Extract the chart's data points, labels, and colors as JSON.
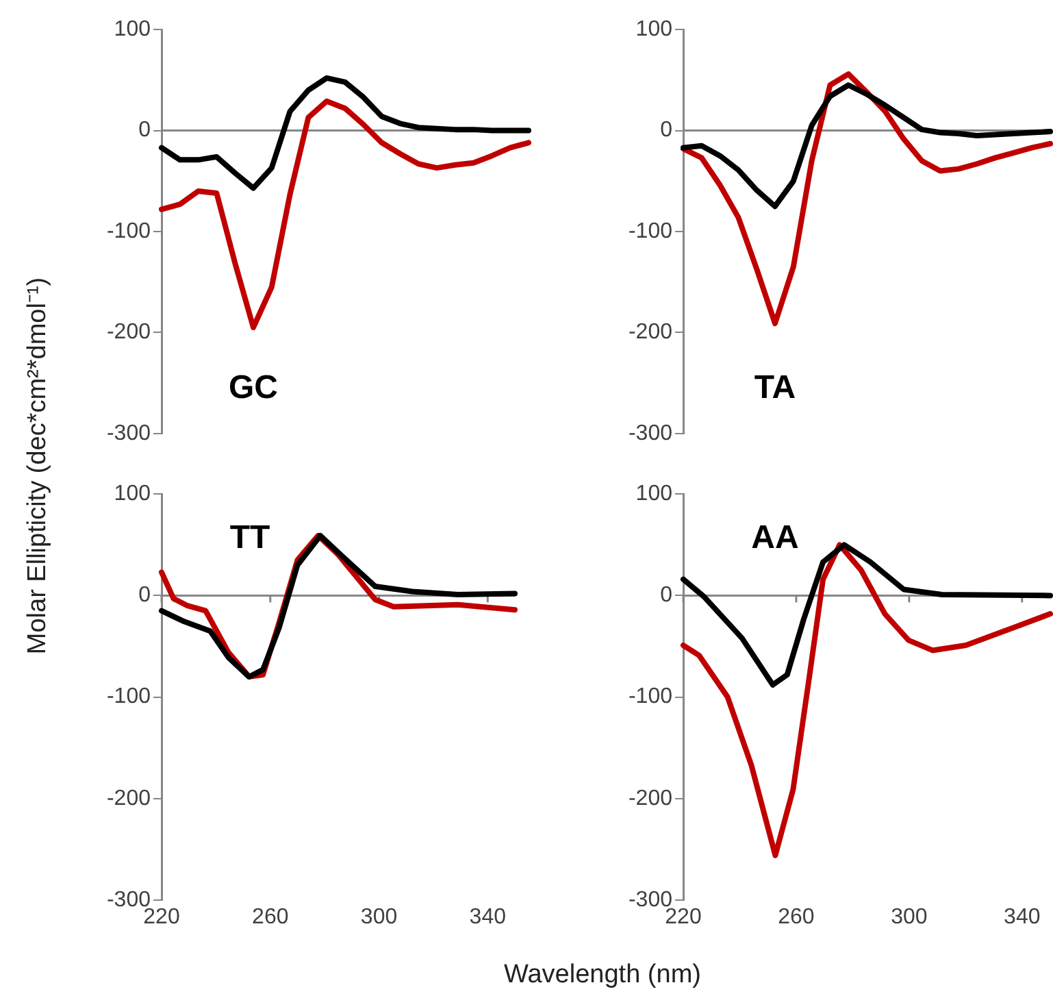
{
  "chart_data": [
    {
      "type": "line",
      "title": "GC",
      "ylabel": "Molar Ellipticity (dec*cm²*dmol⁻¹)",
      "categories": [
        null,
        null,
        null,
        null,
        null,
        null,
        null,
        null,
        null,
        null,
        null,
        null,
        null,
        null,
        null,
        null,
        null,
        null,
        null,
        null,
        null
      ],
      "ylim": [
        -300,
        100
      ],
      "yticks": [
        -300,
        -200,
        -100,
        0,
        100
      ],
      "tick_labels": "y",
      "marker": "none",
      "line_style": "solid",
      "series": [
        {
          "color": "#000000",
          "values": [
            -17,
            -29,
            -29,
            -26,
            -42,
            -57,
            -37,
            19,
            40,
            52,
            48,
            33,
            14,
            7,
            3,
            2,
            1,
            1,
            0,
            0,
            0
          ]
        },
        {
          "color": "#c00000",
          "values": [
            -78,
            -73,
            -60,
            -62,
            -131,
            -195,
            -155,
            -63,
            13,
            29,
            22,
            6,
            -12,
            -23,
            -33,
            -37,
            -34,
            -32,
            -25,
            -17,
            -12
          ]
        }
      ]
    },
    {
      "type": "line",
      "title": "TA",
      "categories": [
        null,
        null,
        null,
        null,
        null,
        null,
        null,
        null,
        null,
        null,
        null,
        null,
        null,
        null,
        null,
        null,
        null,
        null,
        null,
        null,
        null
      ],
      "ylim": [
        -300,
        100
      ],
      "yticks": [
        -300,
        -200,
        -100,
        0,
        100
      ],
      "tick_labels": "y",
      "marker": "none",
      "line_style": "solid",
      "series": [
        {
          "color": "#000000",
          "values": [
            -17,
            -15,
            -25,
            -39,
            -59,
            -75,
            -50,
            5,
            34,
            45,
            36,
            25,
            13,
            1,
            -2,
            -3,
            -5,
            -4,
            -3,
            -2,
            -1
          ]
        },
        {
          "color": "#c00000",
          "values": [
            -18,
            -27,
            -54,
            -86,
            -137,
            -191,
            -135,
            -30,
            45,
            56,
            38,
            19,
            -8,
            -30,
            -40,
            -38,
            -33,
            -27,
            -22,
            -17,
            -13
          ]
        }
      ]
    },
    {
      "type": "line",
      "title": "TT",
      "xlabel": "Wavelength (nm)",
      "xlim": [
        220,
        350
      ],
      "xticks": [
        220,
        260,
        300,
        340
      ],
      "ylim": [
        -300,
        100
      ],
      "yticks": [
        -300,
        -200,
        -100,
        0,
        100
      ],
      "marker": "none",
      "line_style": "solid",
      "series": [
        {
          "color": "#000000",
          "x": [
            220,
            227.8,
            237.9,
            244.6,
            252.2,
            257.3,
            263.2,
            270,
            278.4,
            286.8,
            298.6,
            312.2,
            329,
            350
          ],
          "values": [
            -15,
            -25,
            -35,
            -61,
            -80,
            -73,
            -32,
            30,
            59,
            38,
            9,
            4,
            1,
            2
          ]
        },
        {
          "color": "#c00000",
          "x": [
            220,
            224.4,
            229.5,
            236.2,
            244.6,
            252.2,
            257.3,
            263.2,
            270,
            277.6,
            285.1,
            298.6,
            305.4,
            329,
            350
          ],
          "values": [
            23,
            -3,
            -10,
            -15,
            -56,
            -80,
            -78,
            -27,
            35,
            59,
            40,
            -4,
            -11,
            -9,
            -14
          ]
        }
      ]
    },
    {
      "type": "line",
      "title": "AA",
      "xlim": [
        220,
        350
      ],
      "xticks": [
        220,
        260,
        300,
        340
      ],
      "ylim": [
        -300,
        100
      ],
      "yticks": [
        -300,
        -200,
        -100,
        0,
        100
      ],
      "marker": "none",
      "line_style": "solid",
      "series": [
        {
          "color": "#000000",
          "x": [
            220,
            227.3,
            240.8,
            251.7,
            256.8,
            262.7,
            269.5,
            277,
            286.3,
            298.1,
            311.6,
            350
          ],
          "values": [
            16,
            -1,
            -42,
            -88,
            -78,
            -23,
            33,
            50,
            33,
            6,
            1,
            0
          ]
        },
        {
          "color": "#c00000",
          "x": [
            220,
            225.6,
            235.7,
            244.1,
            252.6,
            258.9,
            264.4,
            269.5,
            275.4,
            283,
            291.4,
            299.8,
            308.3,
            320.1,
            338.6,
            350
          ],
          "values": [
            -49,
            -59,
            -100,
            -167,
            -256,
            -191,
            -85,
            16,
            50,
            25,
            -18,
            -44,
            -54,
            -49,
            -30,
            -18
          ]
        }
      ]
    }
  ]
}
